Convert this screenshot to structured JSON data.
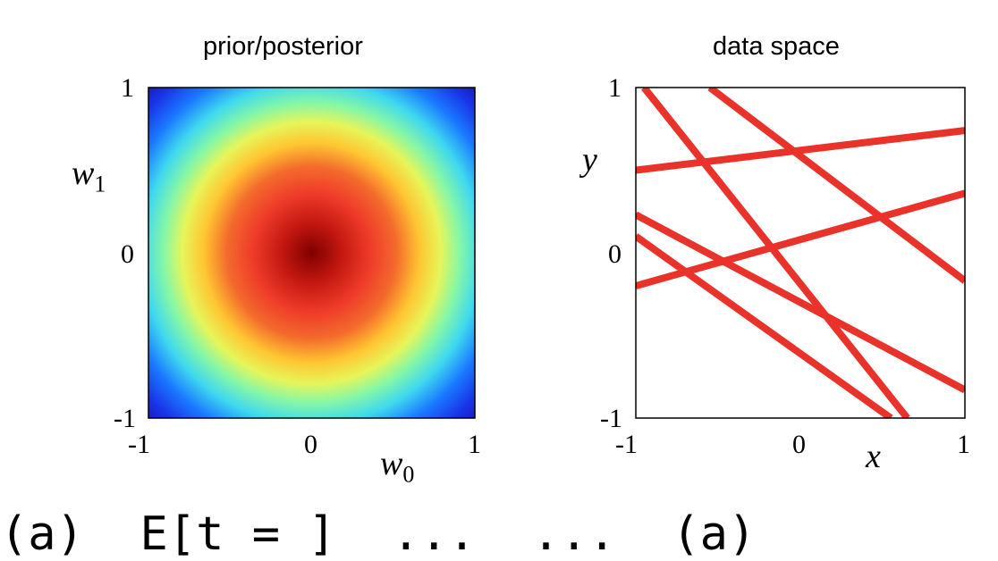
{
  "chart_data": [
    {
      "type": "heatmap",
      "title": "prior/posterior",
      "xlabel": "w",
      "xlabel_sub": "0",
      "ylabel": "w",
      "ylabel_sub": "1",
      "xlim": [
        -1,
        1
      ],
      "ylim": [
        -1,
        1
      ],
      "xticks": [
        "-1",
        "0",
        "1"
      ],
      "yticks": [
        "1",
        "0",
        "-1"
      ],
      "colormap": "jet",
      "center": [
        0,
        0
      ],
      "grid": false
    },
    {
      "type": "line",
      "title": "data space",
      "xlabel": "x",
      "ylabel": "y",
      "xlim": [
        -1,
        1
      ],
      "ylim": [
        -1,
        1
      ],
      "xticks": [
        "-1",
        "0",
        "1"
      ],
      "yticks": [
        "1",
        "0",
        "-1"
      ],
      "line_color": "#e8322a",
      "grid": false,
      "series": [
        {
          "x": [
            -0.95,
            0.65
          ],
          "y": [
            1.0,
            -1.0
          ]
        },
        {
          "x": [
            -0.55,
            1.0
          ],
          "y": [
            1.0,
            -0.17
          ]
        },
        {
          "x": [
            -1.0,
            1.0
          ],
          "y": [
            0.5,
            0.74
          ]
        },
        {
          "x": [
            -1.0,
            1.0
          ],
          "y": [
            -0.2,
            0.36
          ]
        },
        {
          "x": [
            -1.0,
            1.0
          ],
          "y": [
            0.23,
            -0.83
          ]
        },
        {
          "x": [
            -1.0,
            0.55
          ],
          "y": [
            0.1,
            -1.0
          ]
        }
      ]
    }
  ],
  "caption": "(a)  E[t = ]  ...  ...  (a)"
}
